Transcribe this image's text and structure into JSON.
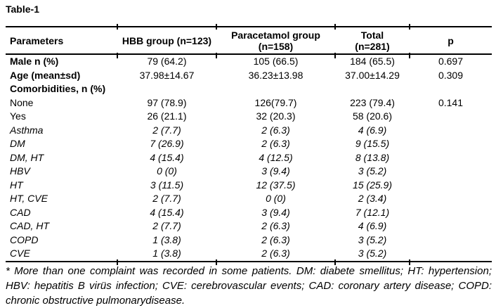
{
  "title": "Table-1",
  "colors": {
    "text": "#000000",
    "background": "#ffffff",
    "rule": "#000000"
  },
  "table": {
    "columns": [
      "Parameters",
      "HBB group (n=123)",
      "Paracetamol group\n(n=158)",
      "Total\n(n=281)",
      "p"
    ],
    "rows": [
      {
        "label": "Male n (%)",
        "style": "bold",
        "values": [
          "79 (64.2)",
          "105 (66.5)",
          "184 (65.5)",
          "0.697"
        ]
      },
      {
        "label": "Age (mean±sd)",
        "style": "bold",
        "values": [
          "37.98±14.67",
          "36.23±13.98",
          "37.00±14.29",
          "0.309"
        ]
      },
      {
        "label": "Comorbidities, n (%)",
        "style": "bold",
        "values": [
          "",
          "",
          "",
          ""
        ]
      },
      {
        "label": "None",
        "style": "plain",
        "values": [
          "97 (78.9)",
          "126(79.7)",
          "223 (79.4)",
          "0.141"
        ]
      },
      {
        "label": "Yes",
        "style": "plain",
        "values": [
          "26 (21.1)",
          "32 (20.3)",
          "58 (20.6)",
          ""
        ]
      },
      {
        "label": "Asthma",
        "style": "italic",
        "values": [
          "2 (7.7)",
          "2 (6.3)",
          "4 (6.9)",
          ""
        ]
      },
      {
        "label": "DM",
        "style": "italic",
        "values": [
          "7 (26.9)",
          "2 (6.3)",
          "9 (15.5)",
          ""
        ]
      },
      {
        "label": "DM, HT",
        "style": "italic",
        "values": [
          "4 (15.4)",
          "4 (12.5)",
          "8 (13.8)",
          ""
        ]
      },
      {
        "label": "HBV",
        "style": "italic",
        "values": [
          "0 (0)",
          "3 (9.4)",
          "3 (5.2)",
          ""
        ]
      },
      {
        "label": "HT",
        "style": "italic",
        "values": [
          "3 (11.5)",
          "12 (37.5)",
          "15 (25.9)",
          ""
        ]
      },
      {
        "label": "HT, CVE",
        "style": "italic",
        "values": [
          "2 (7.7)",
          "0 (0)",
          "2 (3.4)",
          ""
        ]
      },
      {
        "label": "CAD",
        "style": "italic",
        "values": [
          "4 (15.4)",
          "3 (9.4)",
          "7 (12.1)",
          ""
        ]
      },
      {
        "label": "CAD, HT",
        "style": "italic",
        "values": [
          "2 (7.7)",
          "2 (6.3)",
          "4 (6.9)",
          ""
        ]
      },
      {
        "label": "COPD",
        "style": "italic",
        "values": [
          "1 (3.8)",
          "2 (6.3)",
          "3 (5.2)",
          ""
        ]
      },
      {
        "label": "CVE",
        "style": "italic",
        "values": [
          "1 (3.8)",
          "2 (6.3)",
          "3 (5.2)",
          ""
        ]
      }
    ]
  },
  "footnote": "* More than one complaint was recorded in some patients. DM: diabete smellitus; HT: hypertension; HBV: hepatitis B virüs infection; CVE: cerebrovascular events; CAD: coronary artery disease; COPD: chronic obstructive pulmonarydisease."
}
